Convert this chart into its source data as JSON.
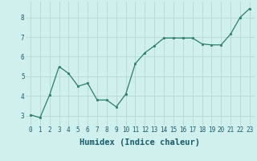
{
  "x": [
    0,
    1,
    2,
    3,
    4,
    5,
    6,
    7,
    8,
    9,
    10,
    11,
    12,
    13,
    14,
    15,
    16,
    17,
    18,
    19,
    20,
    21,
    22,
    23
  ],
  "y": [
    3.05,
    2.9,
    4.05,
    5.5,
    5.15,
    4.5,
    4.65,
    3.8,
    3.8,
    3.45,
    4.1,
    5.65,
    6.2,
    6.55,
    6.95,
    6.95,
    6.95,
    6.95,
    6.65,
    6.6,
    6.6,
    7.15,
    8.0,
    8.45
  ],
  "line_color": "#2e7d6e",
  "marker": "s",
  "markersize": 2.0,
  "linewidth": 0.9,
  "bg_color": "#cff0ec",
  "plot_bg_color": "#cff0ec",
  "grid_color": "#b8d8d4",
  "xlabel": "Humidex (Indice chaleur)",
  "xlabel_fontsize": 7.5,
  "xlabel_color": "#1a5a6e",
  "tick_color": "#1a5a6e",
  "tick_fontsize": 5.5,
  "yticks": [
    3,
    4,
    5,
    6,
    7,
    8
  ],
  "xticks": [
    0,
    1,
    2,
    3,
    4,
    5,
    6,
    7,
    8,
    9,
    10,
    11,
    12,
    13,
    14,
    15,
    16,
    17,
    18,
    19,
    20,
    21,
    22,
    23
  ],
  "ylim": [
    2.5,
    8.8
  ],
  "xlim": [
    -0.5,
    23.5
  ]
}
